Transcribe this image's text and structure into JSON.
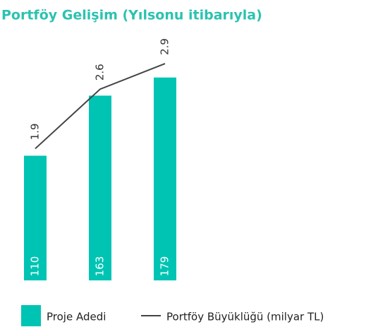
{
  "chart_data": {
    "type": "bar_line",
    "title": "Portföy Gelişim (Yılsonu itibarıyla)",
    "categories": [
      null,
      null,
      null
    ],
    "series": [
      {
        "name": "Proje Adedi",
        "color": "#00c4b3",
        "values": [
          110,
          163,
          179
        ]
      },
      {
        "name": "Portföy Büyüklüğü (milyar TL)",
        "color": "#444444",
        "values": [
          1.9,
          2.6,
          2.9
        ],
        "axis": "y2"
      }
    ],
    "ylim": [
      0,
      210
    ],
    "y2lim": [
      0.35,
      3.15
    ]
  }
}
